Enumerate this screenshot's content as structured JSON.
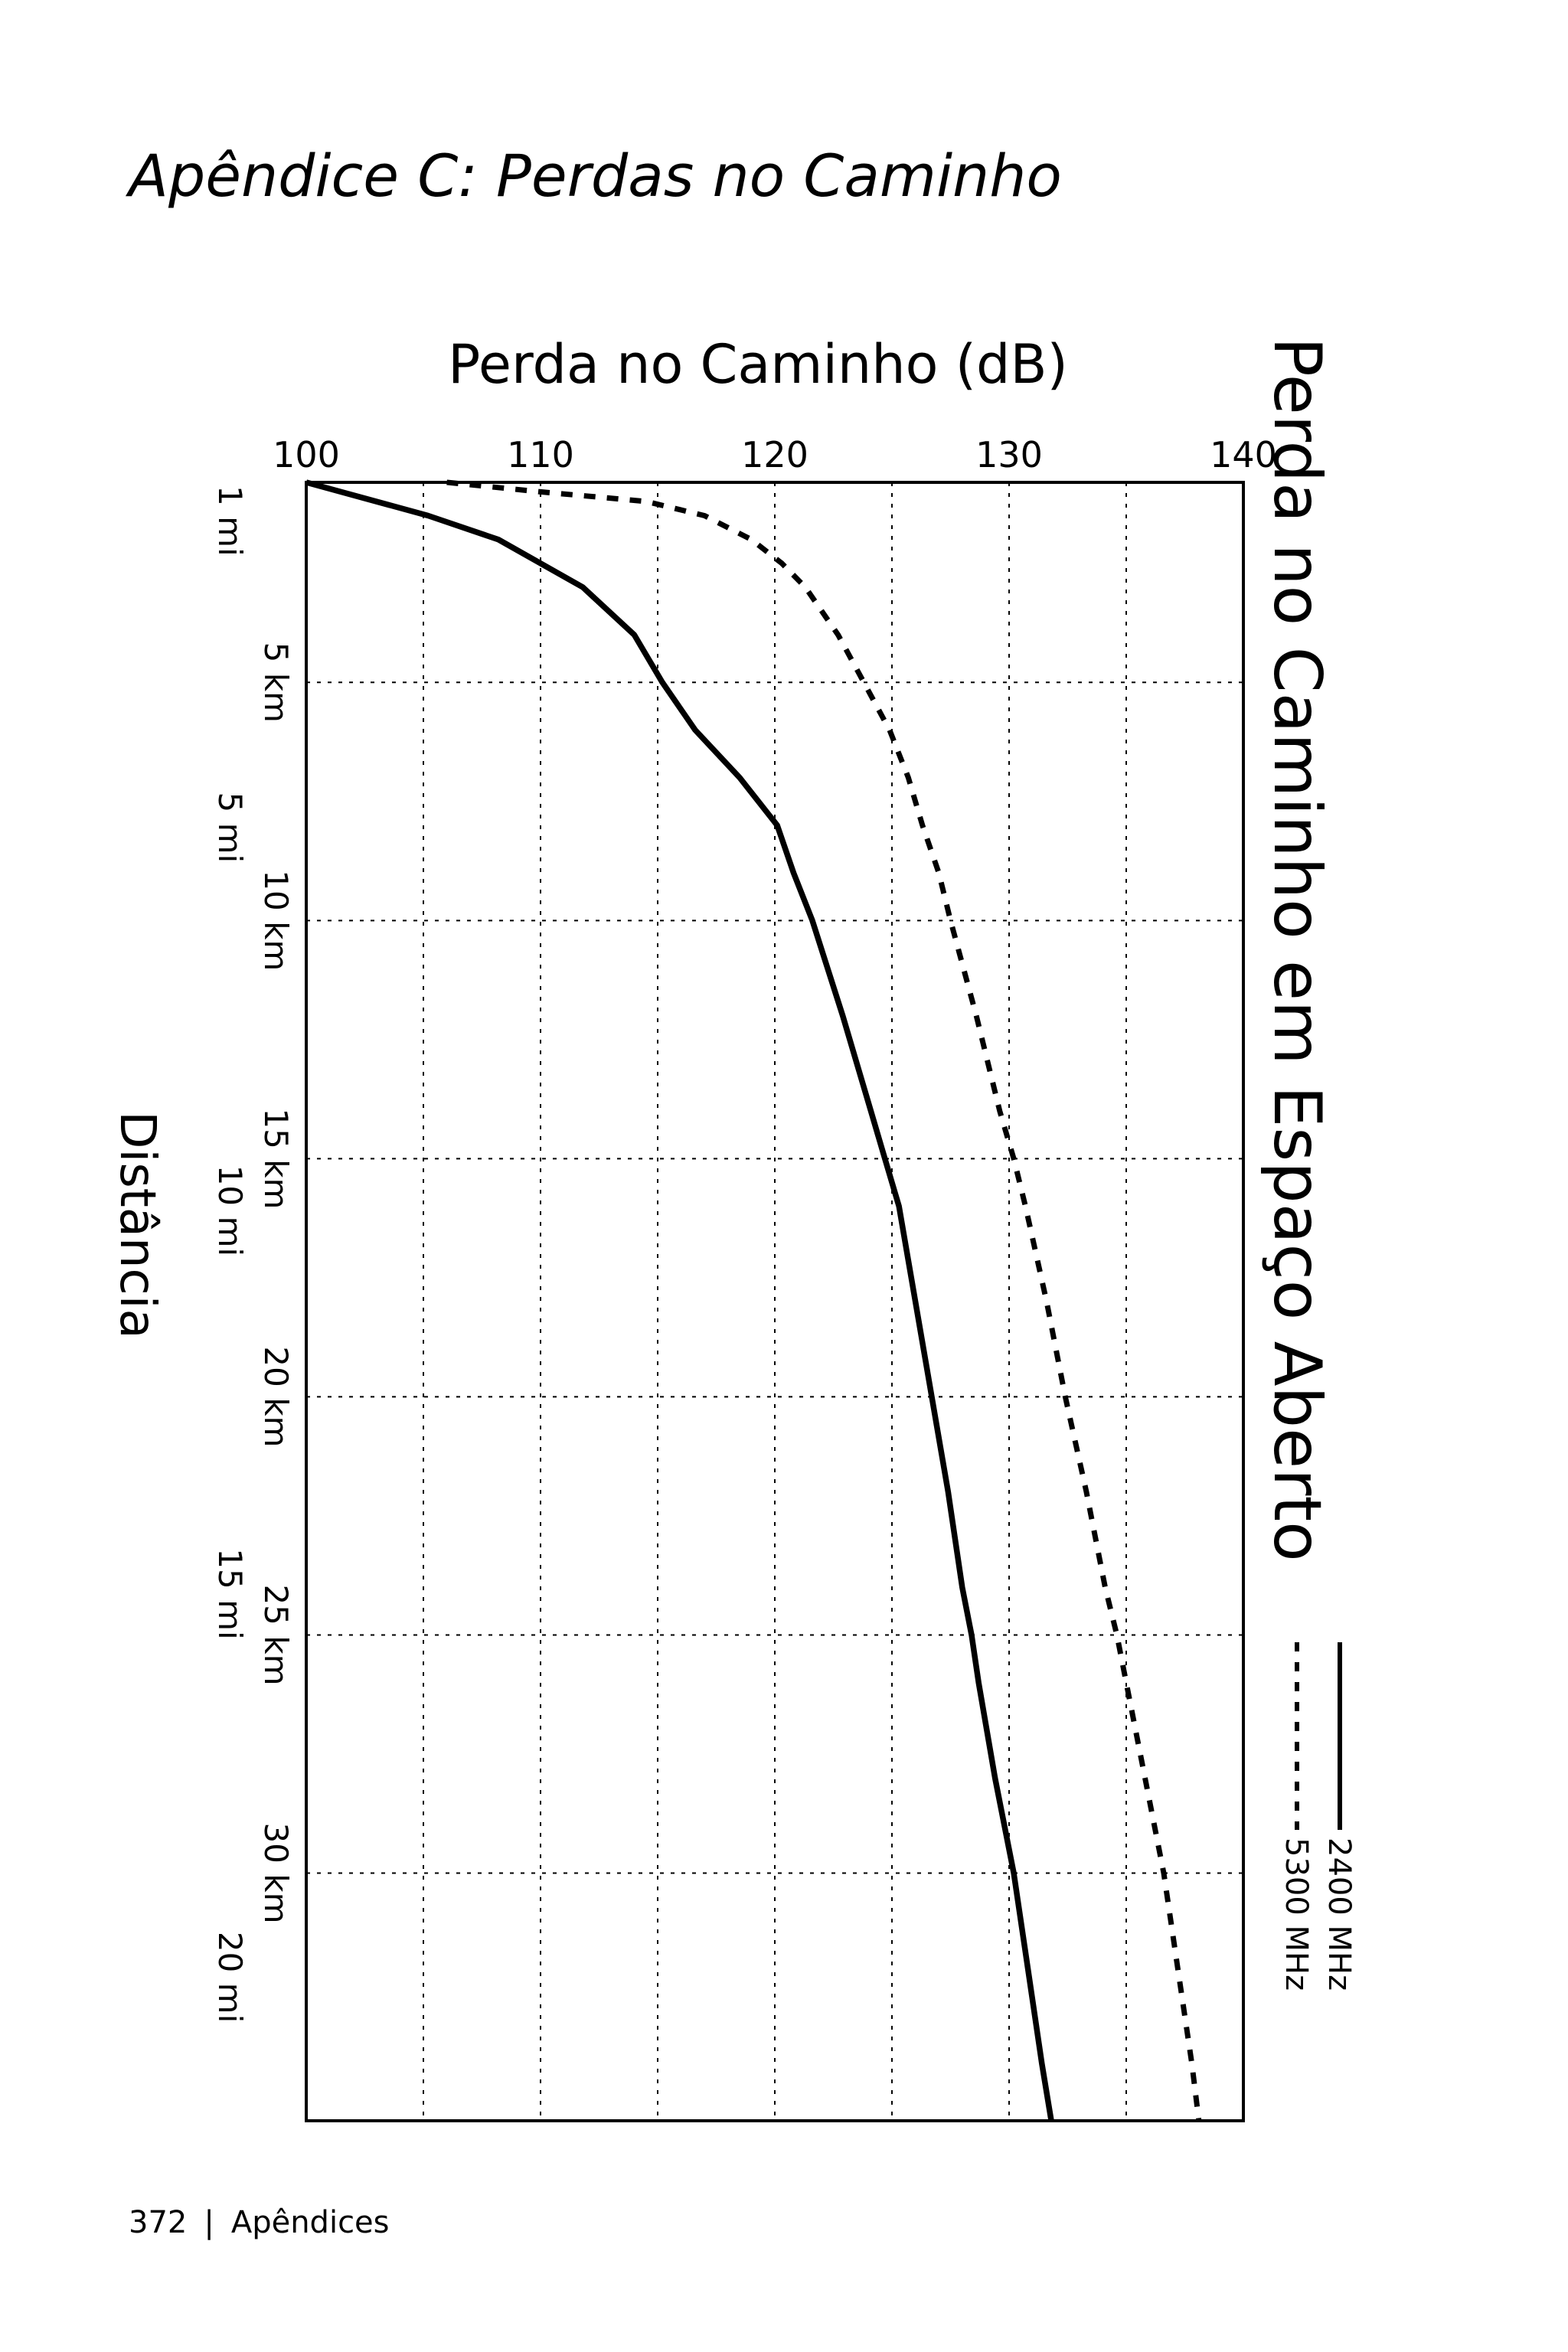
{
  "page": {
    "heading": "Apêndice C: Perdas no Caminho",
    "footer": {
      "page_number": "372",
      "separator": "|",
      "section": "Apêndices"
    }
  },
  "chart_data": {
    "type": "line",
    "title": "Perda no Caminho em Espaço Aberto",
    "ylabel": "Perda no Caminho (dB)",
    "xlabel": "Distância",
    "ylim": [
      100,
      140
    ],
    "y_ticks": [
      100,
      110,
      120,
      130,
      140
    ],
    "xlim_km": [
      0.8,
      35.2
    ],
    "x_ticks_km": [
      {
        "value": 5,
        "label": "5 km"
      },
      {
        "value": 10,
        "label": "10 km"
      },
      {
        "value": 15,
        "label": "15 km"
      },
      {
        "value": 20,
        "label": "20 km"
      },
      {
        "value": 25,
        "label": "25 km"
      },
      {
        "value": 30,
        "label": "30 km"
      }
    ],
    "x_ticks_mi": [
      {
        "value_km": 1.609,
        "label": "1 mi"
      },
      {
        "value_km": 8.047,
        "label": "5 mi"
      },
      {
        "value_km": 16.093,
        "label": "10 mi"
      },
      {
        "value_km": 24.14,
        "label": "15 mi"
      },
      {
        "value_km": 32.187,
        "label": "20 mi"
      }
    ],
    "grid": true,
    "legend_position": "right",
    "series": [
      {
        "name": "2400 MHz",
        "style": "solid",
        "distance_km": [
          0.8,
          1.5,
          2.0,
          3.0,
          4.0,
          5.0,
          6.0,
          7.0,
          8.0,
          9.0,
          10.0,
          12.0,
          14.0,
          15.0,
          16.0,
          18.0,
          20.0,
          22.0,
          24.0,
          25.0,
          26.0,
          28.0,
          30.0,
          32.0,
          34.0,
          35.2
        ],
        "loss_db": [
          100.0,
          105.2,
          108.2,
          111.8,
          114.0,
          115.2,
          116.6,
          118.5,
          120.1,
          120.8,
          121.6,
          122.9,
          124.1,
          124.7,
          125.3,
          126.0,
          126.7,
          127.4,
          128.0,
          128.4,
          128.7,
          129.4,
          130.2,
          130.8,
          131.4,
          131.8
        ]
      },
      {
        "name": "5300 MHz",
        "style": "dashed",
        "distance_km": [
          0.8,
          1.0,
          1.2,
          1.5,
          2.0,
          2.5,
          3.0,
          4.0,
          5.0,
          6.0,
          7.0,
          8.0,
          9.0,
          10.0,
          12.0,
          14.0,
          15.0,
          16.0,
          18.0,
          20.0,
          22.0,
          24.0,
          25.0,
          26.0,
          28.0,
          30.0,
          32.0,
          34.0,
          35.2
        ],
        "loss_db": [
          106.0,
          110.0,
          114.5,
          117.0,
          119.0,
          120.3,
          121.3,
          122.7,
          123.8,
          124.9,
          125.7,
          126.3,
          127.0,
          127.5,
          128.6,
          129.6,
          130.2,
          130.7,
          131.6,
          132.4,
          133.3,
          134.1,
          134.6,
          135.0,
          135.8,
          136.6,
          137.2,
          137.8,
          138.1
        ]
      }
    ]
  }
}
